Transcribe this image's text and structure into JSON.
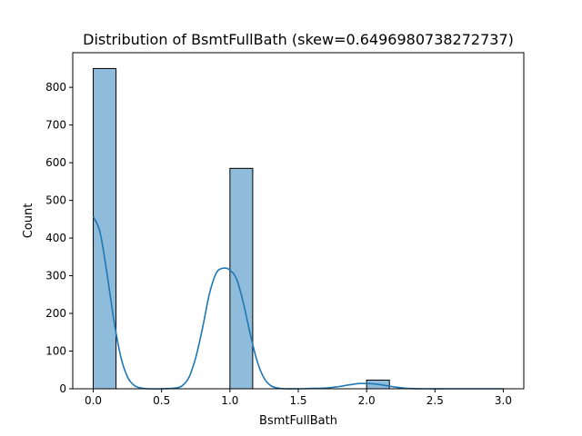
{
  "chart_data": {
    "type": "bar",
    "title": "Distribution of BsmtFullBath (skew=0.6496980738272737)",
    "xlabel": "BsmtFullBath",
    "ylabel": "Count",
    "xlim": [
      -0.15,
      3.15
    ],
    "ylim": [
      0,
      892
    ],
    "xticks": [
      {
        "value": 0.0,
        "label": "0.0"
      },
      {
        "value": 0.5,
        "label": "0.5"
      },
      {
        "value": 1.0,
        "label": "1.0"
      },
      {
        "value": 1.5,
        "label": "1.5"
      },
      {
        "value": 2.0,
        "label": "2.0"
      },
      {
        "value": 2.5,
        "label": "2.5"
      },
      {
        "value": 3.0,
        "label": "3.0"
      }
    ],
    "yticks": [
      {
        "value": 0,
        "label": "0"
      },
      {
        "value": 100,
        "label": "100"
      },
      {
        "value": 200,
        "label": "200"
      },
      {
        "value": 300,
        "label": "300"
      },
      {
        "value": 400,
        "label": "400"
      },
      {
        "value": 500,
        "label": "500"
      },
      {
        "value": 600,
        "label": "600"
      },
      {
        "value": 700,
        "label": "700"
      },
      {
        "value": 800,
        "label": "800"
      }
    ],
    "bars": [
      {
        "x0": 0.0,
        "x1": 0.1667,
        "count": 850
      },
      {
        "x0": 1.0,
        "x1": 1.1667,
        "count": 585
      },
      {
        "x0": 2.0,
        "x1": 2.1667,
        "count": 23
      }
    ],
    "kde": {
      "x": [
        0.0,
        0.05,
        0.1,
        0.15,
        0.2,
        0.25,
        0.3,
        0.35,
        0.4,
        0.5,
        0.6,
        0.65,
        0.7,
        0.75,
        0.8,
        0.85,
        0.9,
        0.95,
        1.0,
        1.05,
        1.1,
        1.15,
        1.2,
        1.25,
        1.3,
        1.35,
        1.4,
        1.5,
        1.6,
        1.7,
        1.8,
        1.85,
        1.9,
        1.95,
        2.0,
        2.05,
        2.1,
        2.15,
        2.2,
        2.3,
        2.4,
        2.6,
        2.8,
        3.0
      ],
      "y": [
        457,
        415,
        307,
        184,
        87,
        32,
        9,
        2,
        0,
        0,
        2,
        8,
        30,
        83,
        162,
        252,
        307,
        320,
        315,
        290,
        225,
        143,
        72,
        28,
        8,
        2,
        0,
        0,
        1,
        2,
        6,
        9,
        12,
        14,
        14,
        13,
        11,
        8,
        5,
        1,
        0,
        0,
        0,
        0
      ]
    },
    "colors": {
      "bar_fill": "#90bcdb",
      "bar_edge": "#000000",
      "kde_line": "#1f77b4"
    },
    "grid": false,
    "legend": "none"
  }
}
